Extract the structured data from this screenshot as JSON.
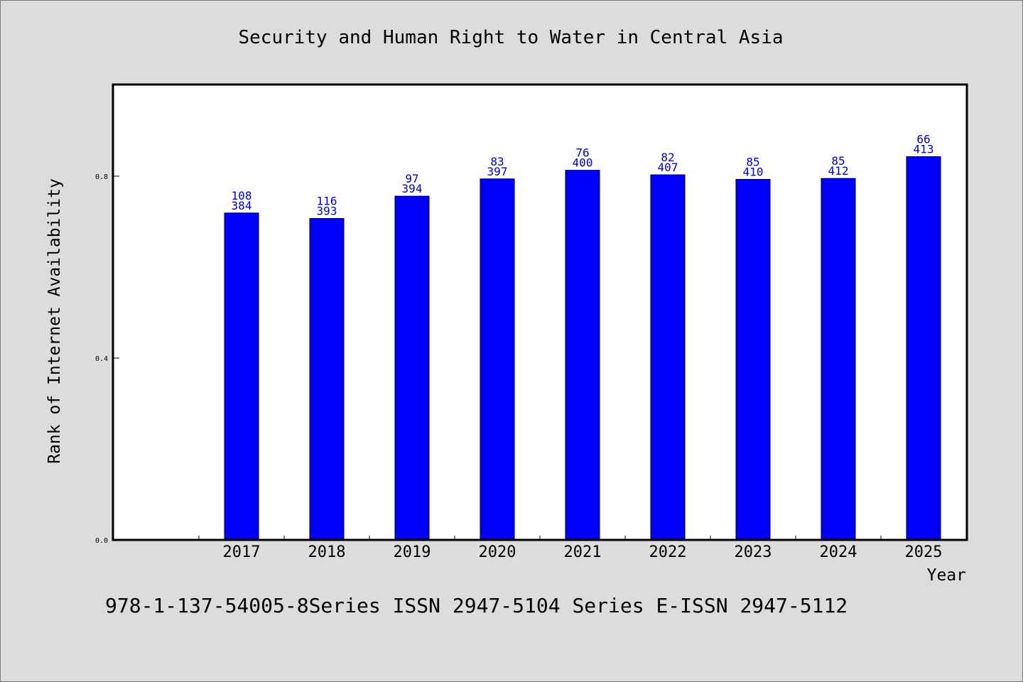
{
  "colors": {
    "background": "#dcdcdc",
    "plot_background": "#ffffff",
    "bar": "#0000ff",
    "data_label": "#0000cc",
    "axis": "#000000"
  },
  "footer": "978-1-137-54005-8Series ISSN 2947-5104 Series E-ISSN 2947-5112",
  "chart_data": {
    "type": "bar",
    "title": "Security and Human Right to Water in Central Asia",
    "xlabel": "Year",
    "ylabel": "Rank of Internet Availability",
    "ylim": [
      0,
      1.0
    ],
    "yticks": [
      "0.0",
      "0.4",
      "0.8"
    ],
    "categories": [
      "2017",
      "2018",
      "2019",
      "2020",
      "2021",
      "2022",
      "2023",
      "2024",
      "2025"
    ],
    "values": [
      0.719,
      0.707,
      0.756,
      0.794,
      0.813,
      0.803,
      0.793,
      0.795,
      0.843
    ],
    "labels_top": [
      "108",
      "116",
      "97",
      "83",
      "76",
      "82",
      "85",
      "85",
      "66"
    ],
    "labels_bottom": [
      "384",
      "393",
      "394",
      "397",
      "400",
      "407",
      "410",
      "412",
      "413"
    ],
    "grid": false,
    "legend": "none"
  }
}
